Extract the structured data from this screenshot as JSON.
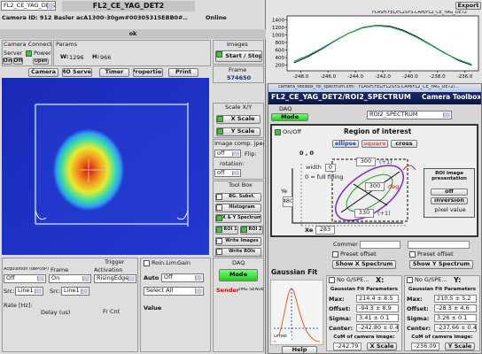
{
  "main": {
    "device_select": "FL2_CE_YAG_DET2",
    "title": "FL2_CE_YAG_DET2",
    "camera_id": "Camera ID:   912   Basler acA1300-30gm#00305315EBB0#...",
    "status": "Online",
    "message": "ok",
    "connection": {
      "label": "Camera Connection",
      "server": "Server",
      "on": "On",
      "off": "Off",
      "power": "Power",
      "power_state": "Open"
    },
    "params": {
      "label": "Params",
      "w_label": "W:",
      "w": 1296,
      "h_label": "H:",
      "h": 966
    },
    "images": {
      "label": "Images",
      "start_stop": "Start / Stop"
    },
    "buttons": [
      "Camera",
      "MO Server",
      "Timer",
      "Properties",
      "Print"
    ],
    "frame": {
      "label": "Frame",
      "value": 574650
    },
    "scale": {
      "label": "Scale X/Y",
      "x": "X Scale",
      "y": "Y Scale"
    },
    "image_comp": {
      "label": "Image comp. jpeg",
      "value": "off",
      "flip": "Flip:",
      "rotation": "rotation:",
      "rotation_value": "off"
    },
    "toolbox": {
      "label": "Tool Box",
      "items": [
        "BG. Subst.",
        "Histogram",
        "X & Y Spectrum",
        "ROI 1",
        "ROI 2",
        "Write Images",
        "Write ROIs"
      ]
    },
    "trigger": {
      "label": "Trigger",
      "acquisition": "Acquisition (dePcoP)",
      "frame": "Frame",
      "activation": "Activation",
      "acq_value": "Off",
      "frame_value": "On",
      "activation_value": "RisingEdge",
      "src1_label": "Src:",
      "src1": "Line1",
      "src2_label": "Src:",
      "src2": "Line1",
      "rate": "Rate [Hz]:",
      "delay": "Delay (us)",
      "frcnt": "Fr Cnt"
    },
    "gain": {
      "label": "Gain",
      "roi_lim": "Roin.Lim.",
      "auto": "Auto",
      "auto_value": "Off",
      "select": "Select All",
      "value": "Value"
    },
    "daq": {
      "label": "DAQ",
      "mode": "Mode",
      "sender": "Sender:",
      "sender_value": "IMG SENDE..."
    }
  },
  "plot": {
    "export": "Export",
    "path": "FLASH.FEL/FL2SYS.CAM/FL2_CE_YAG_DET2",
    "chart_data": {
      "type": "line",
      "x": [
        -248.5,
        -247.5,
        -246.5,
        -245.5,
        -244.5,
        -243.5,
        -242.5,
        -241.5,
        -240.5,
        -239.5,
        -238.5,
        -237.5,
        -236.5,
        -235.5
      ],
      "series": [
        {
          "color": "#1a1030",
          "values": [
            260,
            420,
            620,
            840,
            1040,
            1190,
            1250,
            1230,
            1120,
            950,
            740,
            530,
            330,
            200
          ]
        },
        {
          "color": "#11b040",
          "values": [
            300,
            450,
            640,
            850,
            1040,
            1180,
            1240,
            1210,
            1100,
            930,
            730,
            520,
            350,
            220
          ]
        }
      ],
      "xlim": [
        -249,
        -235
      ],
      "xticks": [
        {
          "value": -248,
          "label": "-248.0"
        },
        {
          "value": -246,
          "label": "-246.0"
        },
        {
          "value": -244,
          "label": "-244.0"
        },
        {
          "value": -242,
          "label": "-242.0"
        },
        {
          "value": -240,
          "label": "-240.0"
        },
        {
          "value": -238,
          "label": "-238.0"
        },
        {
          "value": -236,
          "label": "-236.0"
        }
      ],
      "ylim": [
        50,
        1500
      ],
      "yticks": [
        200,
        400,
        600,
        800,
        1000,
        1200,
        1400
      ]
    }
  },
  "toolbox": {
    "window_title": "camera_toolbox_roi_spectrum.xml - FLASH.FEL/FL2SYS.CAM/FL2_CE_YAG_DET2/...",
    "header": "FL2_CE_YAG_DET2/ROI2_SPECTRUM",
    "app": "Camera Toolbox",
    "daq": "DAQ",
    "mode": "Mode",
    "roi_select": "ROI2_SPECTRUM",
    "roi": {
      "onoff": "On/Off",
      "title": "Region of interest",
      "shapes": [
        "ellipse",
        "square",
        "cross"
      ],
      "origin": "0 , 0",
      "width_label": "width",
      "width": 0,
      "fill_note": "0 = full filling",
      "ye_label": "Ye",
      "ye": 480,
      "xe_label": "Xe",
      "xe": 283,
      "p1": 300,
      "p1_unit": "(+1)",
      "p2": 300,
      "p2_unit": "deg",
      "p3": 330,
      "p3_unit": "(+1)"
    },
    "presentation": {
      "label": "ROI image presentation",
      "off": "off",
      "inversion": "inversion",
      "pixel": "pixel value"
    },
    "comment": "Comment",
    "preset_x": "Preset offset",
    "preset_y": "Preset offset",
    "show_x": "Show X Spectrum",
    "show_y": "Show Y Spectrum",
    "gauss": "Gaussian Fit",
    "offset": "Offset",
    "help": "Help",
    "fit": [
      {
        "no_gspe": "No G/SPE...",
        "axis": "X:",
        "params": "Gaussian Fit Parameters",
        "rows": [
          [
            "Max:",
            "214.4 ± 8.5"
          ],
          [
            "Offset:",
            "-94.3 ± 8.9"
          ],
          [
            "Sigma:",
            "3.41 ± 0.1"
          ],
          [
            "Center:",
            "-242.80 ± 0.4"
          ]
        ],
        "com": "CoM of camera image:",
        "com_value": "-242.79",
        "scale": "X Scale"
      },
      {
        "no_gspe": "No G/SPE...",
        "axis": "Y:",
        "params": "Gaussian Fit Parameters",
        "rows": [
          [
            "Max:",
            "210.5 ± 5.2"
          ],
          [
            "Offset:",
            "-28.3 ± 4.6"
          ],
          [
            "Sigma:",
            "3.26 ± 0.1"
          ],
          [
            "Center:",
            "-237.66 ± 0.4"
          ]
        ],
        "com": "CoM of camera image:",
        "com_value": "-236.09",
        "scale": "Y Scale"
      }
    ]
  }
}
